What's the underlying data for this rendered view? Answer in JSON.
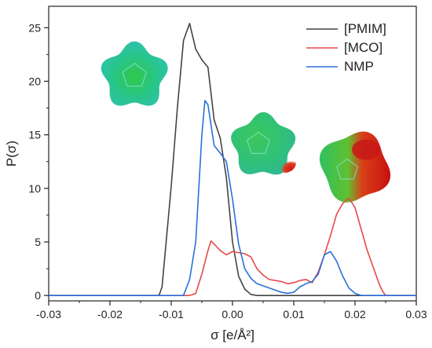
{
  "chart_data": {
    "type": "line",
    "title": "",
    "xlabel": "σ [e/Å²]",
    "ylabel": "P(σ)",
    "xlim": [
      -0.03,
      0.03
    ],
    "ylim": [
      -0.5,
      27
    ],
    "grid": false,
    "legend_position": "top-right",
    "x_ticks": [
      -0.03,
      -0.02,
      -0.01,
      0.0,
      0.01,
      0.02,
      0.03
    ],
    "x_tick_labels": [
      "-0.03",
      "-0.02",
      "-0.01",
      "0.00",
      "0.01",
      "0.02",
      "0.03"
    ],
    "y_ticks": [
      0,
      5,
      10,
      15,
      20,
      25
    ],
    "y_tick_labels": [
      "0",
      "5",
      "10",
      "15",
      "20",
      "25"
    ],
    "series": [
      {
        "name": "[PMIM]",
        "color": "#444444",
        "points": [
          [
            -0.03,
            0
          ],
          [
            -0.012,
            0
          ],
          [
            -0.0115,
            0.8
          ],
          [
            -0.01,
            10.2
          ],
          [
            -0.009,
            17.5
          ],
          [
            -0.008,
            23.8
          ],
          [
            -0.007,
            25.4
          ],
          [
            -0.006,
            23.0
          ],
          [
            -0.005,
            22.0
          ],
          [
            -0.004,
            21.3
          ],
          [
            -0.003,
            16.4
          ],
          [
            -0.002,
            14.7
          ],
          [
            -0.001,
            11.0
          ],
          [
            0.0,
            5.0
          ],
          [
            0.001,
            1.8
          ],
          [
            0.002,
            0.6
          ],
          [
            0.003,
            0.1
          ],
          [
            0.004,
            0
          ],
          [
            0.03,
            0
          ]
        ]
      },
      {
        "name": "[MCO]",
        "color": "#e84848",
        "points": [
          [
            -0.03,
            0
          ],
          [
            -0.007,
            0
          ],
          [
            -0.006,
            0.2
          ],
          [
            -0.005,
            2.0
          ],
          [
            -0.004,
            4.2
          ],
          [
            -0.0035,
            5.1
          ],
          [
            -0.003,
            4.8
          ],
          [
            -0.002,
            4.2
          ],
          [
            -0.001,
            3.8
          ],
          [
            0.0,
            4.1
          ],
          [
            0.001,
            4.0
          ],
          [
            0.002,
            3.9
          ],
          [
            0.003,
            3.6
          ],
          [
            0.004,
            2.5
          ],
          [
            0.005,
            1.9
          ],
          [
            0.006,
            1.5
          ],
          [
            0.007,
            1.4
          ],
          [
            0.008,
            1.3
          ],
          [
            0.009,
            1.1
          ],
          [
            0.01,
            1.2
          ],
          [
            0.011,
            1.4
          ],
          [
            0.012,
            1.5
          ],
          [
            0.013,
            1.2
          ],
          [
            0.014,
            2.2
          ],
          [
            0.015,
            3.8
          ],
          [
            0.016,
            5.6
          ],
          [
            0.017,
            7.6
          ],
          [
            0.018,
            8.6
          ],
          [
            0.019,
            9.1
          ],
          [
            0.02,
            8.2
          ],
          [
            0.021,
            6.2
          ],
          [
            0.022,
            4.2
          ],
          [
            0.023,
            2.6
          ],
          [
            0.024,
            1.0
          ],
          [
            0.0245,
            0.4
          ],
          [
            0.025,
            0
          ],
          [
            0.03,
            0
          ]
        ]
      },
      {
        "name": "NMP",
        "color": "#2a6fdb",
        "points": [
          [
            -0.03,
            0
          ],
          [
            -0.008,
            0
          ],
          [
            -0.007,
            1.5
          ],
          [
            -0.006,
            5.0
          ],
          [
            -0.005,
            15.0
          ],
          [
            -0.0045,
            18.2
          ],
          [
            -0.004,
            17.8
          ],
          [
            -0.003,
            14.0
          ],
          [
            -0.002,
            13.3
          ],
          [
            -0.001,
            12.5
          ],
          [
            0.0,
            9.0
          ],
          [
            0.001,
            4.8
          ],
          [
            0.002,
            2.5
          ],
          [
            0.003,
            1.6
          ],
          [
            0.004,
            1.1
          ],
          [
            0.005,
            0.9
          ],
          [
            0.006,
            0.7
          ],
          [
            0.007,
            0.5
          ],
          [
            0.008,
            0.3
          ],
          [
            0.009,
            0.2
          ],
          [
            0.01,
            0.3
          ],
          [
            0.011,
            0.8
          ],
          [
            0.012,
            1.1
          ],
          [
            0.013,
            1.3
          ],
          [
            0.014,
            2.0
          ],
          [
            0.015,
            3.8
          ],
          [
            0.016,
            4.1
          ],
          [
            0.017,
            3.2
          ],
          [
            0.018,
            1.8
          ],
          [
            0.019,
            0.7
          ],
          [
            0.02,
            0.2
          ],
          [
            0.021,
            0
          ],
          [
            0.03,
            0
          ]
        ]
      }
    ],
    "molecules": [
      {
        "id": "pmim-surface",
        "x": -0.016,
        "y": 20.5
      },
      {
        "id": "nmp-surface",
        "x": 0.005,
        "y": 14.0
      },
      {
        "id": "mco-surface",
        "x": 0.02,
        "y": 12.0
      }
    ]
  }
}
